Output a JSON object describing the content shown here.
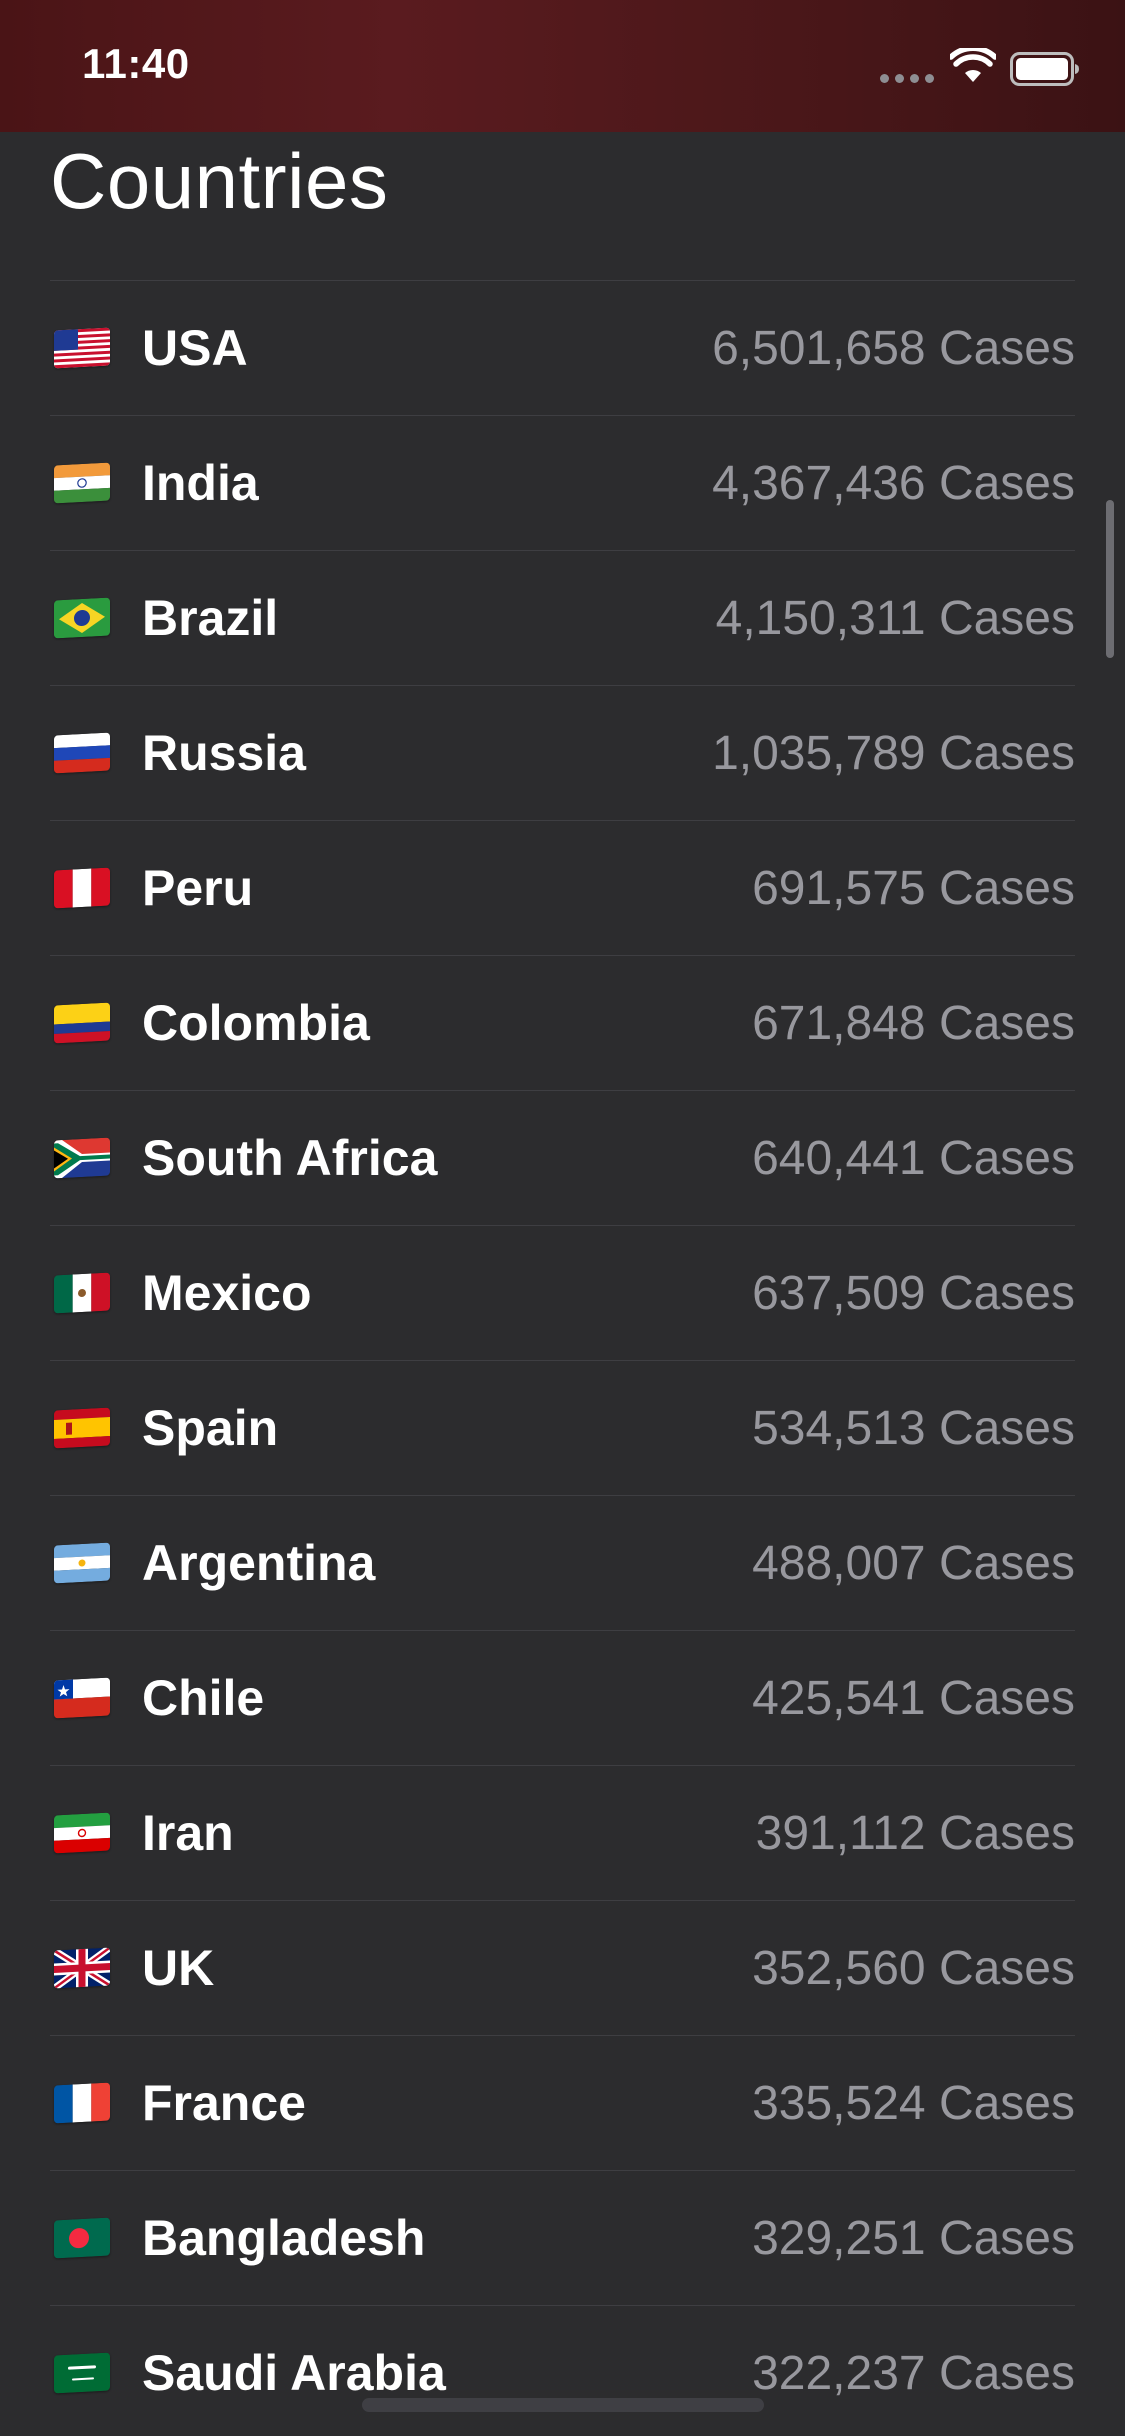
{
  "status_bar": {
    "time": "11:40"
  },
  "header": {
    "title": "Countries"
  },
  "countries": [
    {
      "name": "USA",
      "cases": "6,501,658 Cases",
      "flag_icon": "flag-usa-icon"
    },
    {
      "name": "India",
      "cases": "4,367,436 Cases",
      "flag_icon": "flag-india-icon"
    },
    {
      "name": "Brazil",
      "cases": "4,150,311 Cases",
      "flag_icon": "flag-brazil-icon"
    },
    {
      "name": "Russia",
      "cases": "1,035,789 Cases",
      "flag_icon": "flag-russia-icon"
    },
    {
      "name": "Peru",
      "cases": "691,575 Cases",
      "flag_icon": "flag-peru-icon"
    },
    {
      "name": "Colombia",
      "cases": "671,848 Cases",
      "flag_icon": "flag-colombia-icon"
    },
    {
      "name": "South Africa",
      "cases": "640,441 Cases",
      "flag_icon": "flag-south-africa-icon"
    },
    {
      "name": "Mexico",
      "cases": "637,509 Cases",
      "flag_icon": "flag-mexico-icon"
    },
    {
      "name": "Spain",
      "cases": "534,513 Cases",
      "flag_icon": "flag-spain-icon"
    },
    {
      "name": "Argentina",
      "cases": "488,007 Cases",
      "flag_icon": "flag-argentina-icon"
    },
    {
      "name": "Chile",
      "cases": "425,541 Cases",
      "flag_icon": "flag-chile-icon"
    },
    {
      "name": "Iran",
      "cases": "391,112 Cases",
      "flag_icon": "flag-iran-icon"
    },
    {
      "name": "UK",
      "cases": "352,560 Cases",
      "flag_icon": "flag-uk-icon"
    },
    {
      "name": "France",
      "cases": "335,524 Cases",
      "flag_icon": "flag-france-icon"
    },
    {
      "name": "Bangladesh",
      "cases": "329,251 Cases",
      "flag_icon": "flag-bangladesh-icon"
    },
    {
      "name": "Saudi Arabia",
      "cases": "322,237 Cases",
      "flag_icon": "flag-saudi-arabia-icon"
    }
  ],
  "colors": {
    "background": "#2c2c2e",
    "status_bar": "#4f171a",
    "primary_text": "#ffffff",
    "secondary_text": "#98989e",
    "separator": "#3e3e42"
  }
}
